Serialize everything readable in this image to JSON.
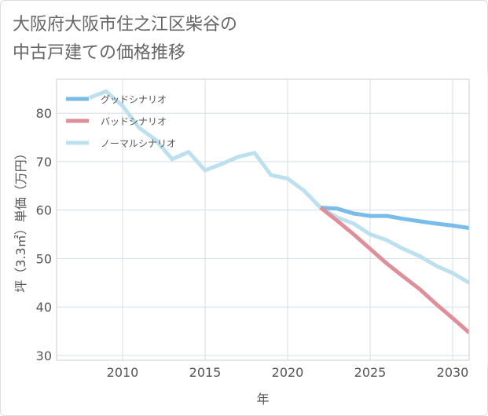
{
  "title_line1": "大阪府大阪市住之江区柴谷の",
  "title_line2": "中古戸建ての価格推移",
  "chart_data": {
    "type": "line",
    "xlabel": "年",
    "ylabel": "坪（3.3㎡）単価（万円）",
    "xlim": [
      2006,
      2031
    ],
    "ylim": [
      29,
      87
    ],
    "x_ticks": [
      2010,
      2015,
      2020,
      2025,
      2030
    ],
    "y_ticks": [
      30,
      40,
      50,
      60,
      70,
      80
    ],
    "legend_position": "top-left",
    "series": [
      {
        "name": "ノーマルシナリオ",
        "color": "#bde0ef",
        "x": [
          2008,
          2009,
          2010,
          2011,
          2012,
          2013,
          2014,
          2015,
          2016,
          2017,
          2018,
          2019,
          2020,
          2021,
          2022,
          2023,
          2024,
          2025,
          2026,
          2027,
          2028,
          2029,
          2030,
          2031
        ],
        "values": [
          83.2,
          84.5,
          81.5,
          77.0,
          74.5,
          70.5,
          72.0,
          68.2,
          69.5,
          71.0,
          71.8,
          67.2,
          66.5,
          64.0,
          60.5,
          58.5,
          57.2,
          55.0,
          53.8,
          52.0,
          50.5,
          48.5,
          47.0,
          45.0
        ]
      },
      {
        "name": "グッドシナリオ",
        "color": "#79bbe9",
        "x": [
          2022,
          2023,
          2024,
          2025,
          2026,
          2027,
          2028,
          2029,
          2030,
          2031
        ],
        "values": [
          60.5,
          60.3,
          59.3,
          58.8,
          58.8,
          58.2,
          57.7,
          57.2,
          56.8,
          56.3
        ]
      },
      {
        "name": "バッドシナリオ",
        "color": "#df8f98",
        "x": [
          2022,
          2023,
          2024,
          2025,
          2026,
          2027,
          2028,
          2029,
          2030,
          2031
        ],
        "values": [
          60.5,
          57.8,
          55.0,
          52.0,
          49.0,
          46.3,
          43.7,
          40.6,
          37.7,
          34.7
        ]
      }
    ],
    "legend": [
      {
        "name": "グッドシナリオ",
        "color": "#79bbe9"
      },
      {
        "name": "バッドシナリオ",
        "color": "#df8f98"
      },
      {
        "name": "ノーマルシナリオ",
        "color": "#bde0ef"
      }
    ]
  }
}
